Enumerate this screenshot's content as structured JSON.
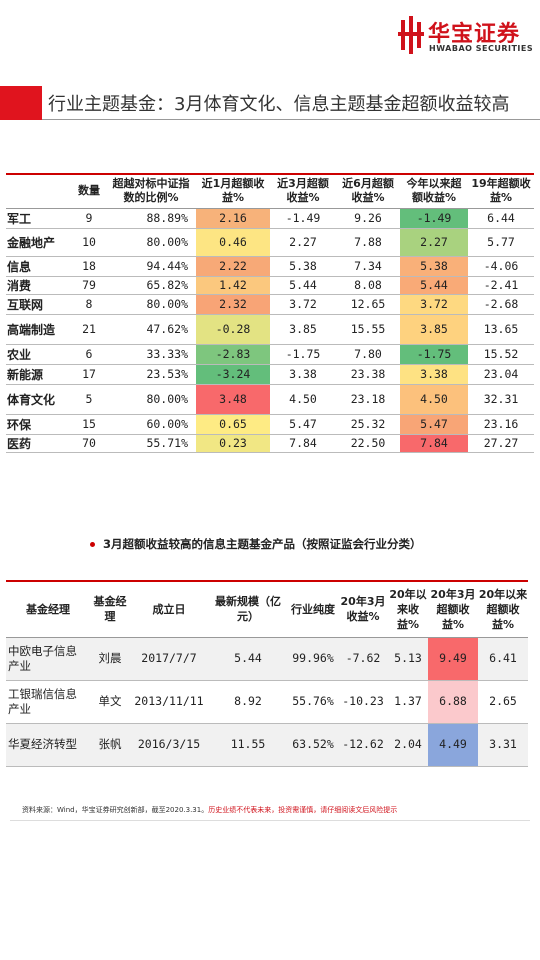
{
  "brand": {
    "name_cn": "华宝证券",
    "name_en": "HWABAO SECURITIES"
  },
  "page_title": "行业主题基金：3月体育文化、信息主题基金超额收益较高",
  "table1": {
    "headers": [
      "",
      "数量",
      "超越对标中证指数的比例%",
      "近1月超额收益%",
      "近3月超额收益%",
      "近6月超额收益%",
      "今年以来超额收益%",
      "19年超额收益%"
    ],
    "rows": [
      {
        "name": "军工",
        "count": "9",
        "ratio": "88.89%",
        "m1": "2.16",
        "m3": "-1.49",
        "m6": "9.26",
        "ytd": "-1.49",
        "y19": "6.44",
        "c1": "#f7b27a",
        "cy": "#63be7b"
      },
      {
        "name": "金融地产",
        "count": "10",
        "ratio": "80.00%",
        "m1": "0.46",
        "m3": "2.27",
        "m6": "7.88",
        "ytd": "2.27",
        "y19": "5.77",
        "c1": "#fde583",
        "cy": "#a9d27f"
      },
      {
        "name": "信息",
        "count": "18",
        "ratio": "94.44%",
        "m1": "2.22",
        "m3": "5.38",
        "m6": "7.34",
        "ytd": "5.38",
        "y19": "-4.06",
        "c1": "#f7a977",
        "cy": "#f9b079"
      },
      {
        "name": "消费",
        "count": "79",
        "ratio": "65.82%",
        "m1": "1.42",
        "m3": "5.44",
        "m6": "8.08",
        "ytd": "5.44",
        "y19": "-2.41",
        "c1": "#fbc87e",
        "cy": "#f9aa77"
      },
      {
        "name": "互联网",
        "count": "8",
        "ratio": "80.00%",
        "m1": "2.32",
        "m3": "3.72",
        "m6": "12.65",
        "ytd": "3.72",
        "y19": "-2.68",
        "c1": "#f8a476",
        "cy": "#fed981"
      },
      {
        "name": "高端制造",
        "count": "21",
        "ratio": "47.62%",
        "m1": "-0.28",
        "m3": "3.85",
        "m6": "15.55",
        "ytd": "3.85",
        "y19": "13.65",
        "c1": "#e3e383",
        "cy": "#fed27f"
      },
      {
        "name": "农业",
        "count": "6",
        "ratio": "33.33%",
        "m1": "-2.83",
        "m3": "-1.75",
        "m6": "7.80",
        "ytd": "-1.75",
        "y19": "15.52",
        "c1": "#7ec67e",
        "cy": "#63be7b"
      },
      {
        "name": "新能源",
        "count": "17",
        "ratio": "23.53%",
        "m1": "-3.24",
        "m3": "3.38",
        "m6": "23.38",
        "ytd": "3.38",
        "y19": "23.04",
        "c1": "#63be7b",
        "cy": "#fee283"
      },
      {
        "name": "体育文化",
        "count": "5",
        "ratio": "80.00%",
        "m1": "3.48",
        "m3": "4.50",
        "m6": "23.18",
        "ytd": "4.50",
        "y19": "32.31",
        "c1": "#f8696b",
        "cy": "#fcc17c"
      },
      {
        "name": "环保",
        "count": "15",
        "ratio": "60.00%",
        "m1": "0.65",
        "m3": "5.47",
        "m6": "25.32",
        "ytd": "5.47",
        "y19": "23.16",
        "c1": "#feeb84",
        "cy": "#f8a576"
      },
      {
        "name": "医药",
        "count": "70",
        "ratio": "55.71%",
        "m1": "0.23",
        "m3": "7.84",
        "m6": "22.50",
        "ytd": "7.84",
        "y19": "27.27",
        "c1": "#f1e784",
        "cy": "#f8696b"
      }
    ]
  },
  "section_title": "3月超额收益较高的信息主题基金产品（按照证监会行业分类）",
  "table2": {
    "headers": [
      "基金经理",
      "基金经理",
      "成立日",
      "最新规模（亿元）",
      "行业纯度",
      "20年3月收益%",
      "20年以来收益%",
      "20年3月超额收益%",
      "20年以来超额收益%"
    ],
    "rows": [
      {
        "name": "中欧电子信息产业",
        "mgr": "刘晨",
        "date": "2017/7/7",
        "size": "5.44",
        "purity": "99.96%",
        "m3": "-7.62",
        "ytd": "5.13",
        "ex3": "9.49",
        "exytd": "6.41",
        "color": "#f8696b"
      },
      {
        "name": "工银瑞信信息产业",
        "mgr": "单文",
        "date": "2013/11/11",
        "size": "8.92",
        "purity": "55.76%",
        "m3": "-10.23",
        "ytd": "1.37",
        "ex3": "6.88",
        "exytd": "2.65",
        "color": "#fbc9cc"
      },
      {
        "name": "华夏经济转型",
        "mgr": "张帆",
        "date": "2016/3/15",
        "size": "11.55",
        "purity": "63.52%",
        "m3": "-12.62",
        "ytd": "2.04",
        "ex3": "4.49",
        "exytd": "3.31",
        "color": "#8aa6dc"
      }
    ]
  },
  "footer": {
    "source": "资料来源：Wind，华宝证券研究创新部，截至2020.3.31。",
    "risk": "历史业绩不代表未来，投资需谨慎，请仔细阅读文后风险提示"
  },
  "colors": {
    "accent": "#e0141e"
  }
}
